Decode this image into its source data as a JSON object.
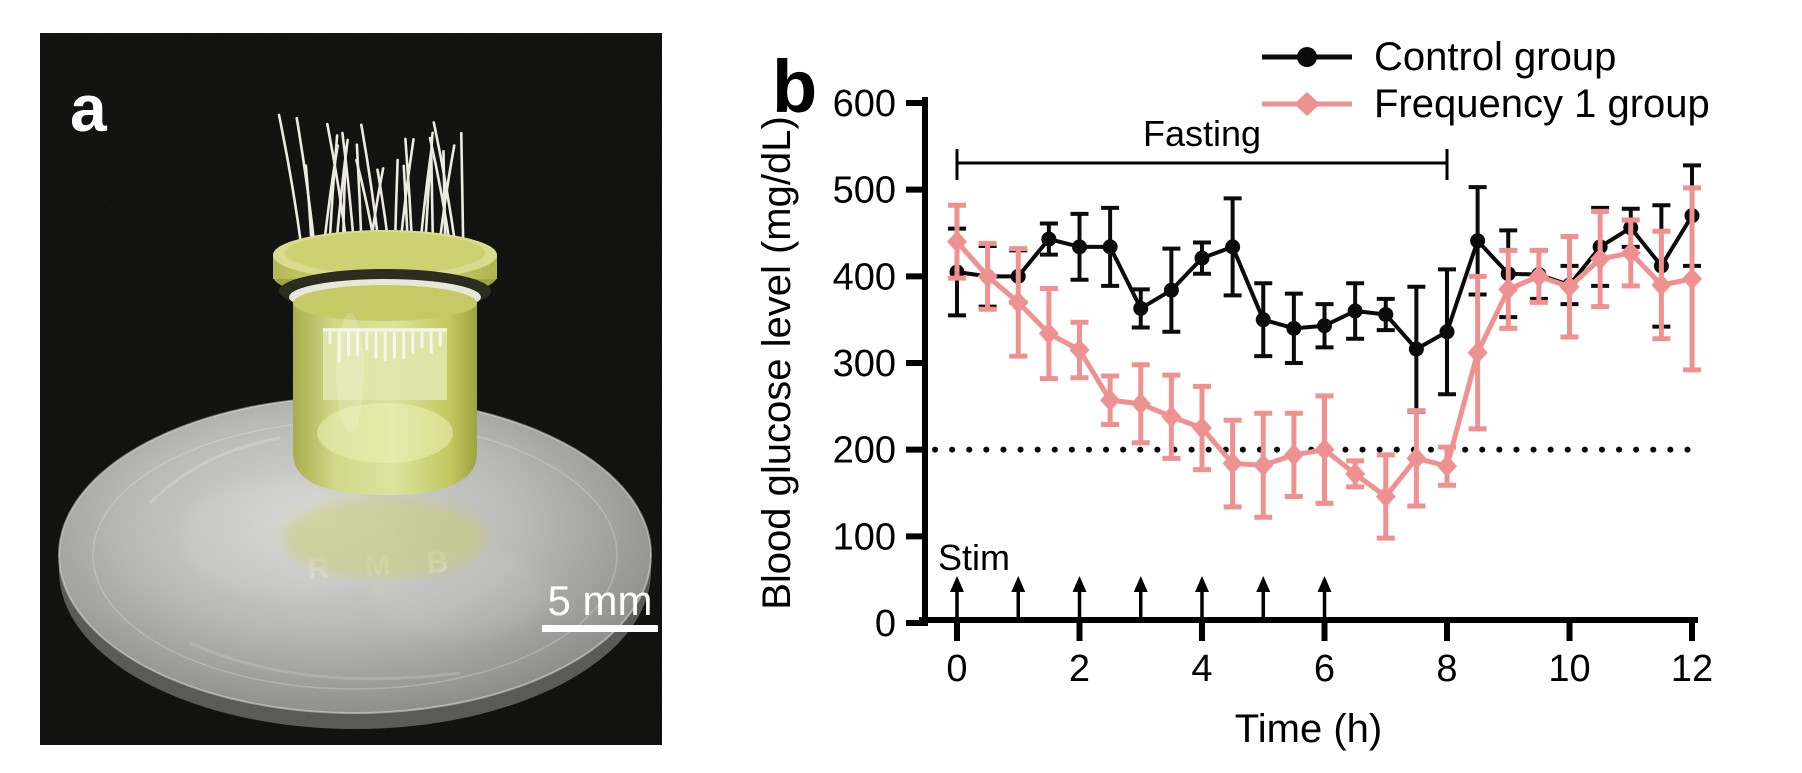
{
  "figure": {
    "panel_a": {
      "label": "a",
      "scale_bar_label": "5 mm",
      "coin_engraving": "R M B"
    },
    "panel_b": {
      "label": "b"
    }
  },
  "chart_data": {
    "type": "line",
    "title": "",
    "xlabel": "Time (h)",
    "ylabel": "Blood glucose level (mg/dL)",
    "xlim": [
      0,
      12
    ],
    "ylim": [
      0,
      600
    ],
    "xticks": [
      0,
      2,
      4,
      6,
      8,
      10,
      12
    ],
    "yticks": [
      0,
      100,
      200,
      300,
      400,
      500,
      600
    ],
    "grid": false,
    "legend_position": "top-right",
    "x": [
      0,
      0.5,
      1,
      1.5,
      2,
      2.5,
      3,
      3.5,
      4,
      4.5,
      5,
      5.5,
      6,
      6.5,
      7,
      7.5,
      8,
      8.5,
      9,
      9.5,
      10,
      10.5,
      11,
      11.5,
      12
    ],
    "series": [
      {
        "name": "Control group",
        "color": "#0b0b0b",
        "marker": "circle",
        "values": [
          405,
          400,
          400,
          443,
          434,
          434,
          363,
          384,
          421,
          434,
          350,
          340,
          343,
          360,
          356,
          316,
          336,
          441,
          403,
          402,
          390,
          434,
          456,
          412,
          470
        ],
        "errors": [
          50,
          35,
          30,
          18,
          38,
          45,
          22,
          48,
          18,
          56,
          42,
          40,
          25,
          32,
          18,
          72,
          72,
          62,
          50,
          28,
          22,
          45,
          22,
          70,
          58
        ]
      },
      {
        "name": "Frequency 1 group",
        "color": "#EF9191",
        "marker": "diamond",
        "values": [
          440,
          400,
          370,
          334,
          315,
          257,
          253,
          238,
          225,
          184,
          182,
          194,
          200,
          172,
          146,
          190,
          181,
          312,
          385,
          400,
          388,
          420,
          427,
          390,
          397
        ],
        "errors": [
          42,
          38,
          62,
          52,
          32,
          28,
          45,
          48,
          48,
          50,
          60,
          48,
          62,
          15,
          48,
          55,
          22,
          88,
          45,
          30,
          58,
          55,
          38,
          62,
          105
        ]
      }
    ],
    "reference_line": {
      "y": 200,
      "style": "dotted",
      "color": "#0b0b0b"
    },
    "annotations": {
      "fasting": {
        "label": "Fasting",
        "x_start": 0,
        "x_end": 8
      },
      "stim": {
        "label": "Stim",
        "arrow_times": [
          0,
          1,
          2,
          3,
          4,
          5,
          6
        ]
      }
    }
  }
}
